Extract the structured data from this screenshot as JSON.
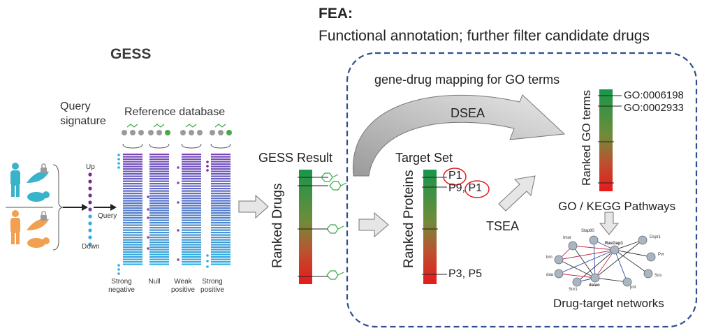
{
  "titles": {
    "fea_label": "FEA:",
    "fea_subtitle": "Functional annotation; further filter candidate drugs",
    "gess_label": "GESS"
  },
  "gess_panel": {
    "query_signature_line1": "Query",
    "query_signature_line2": "signature",
    "reference_database": "Reference database",
    "up": "Up",
    "down": "Down",
    "query": "Query",
    "columns": [
      {
        "line1": "Strong",
        "line2": "negative"
      },
      {
        "line1": "Null",
        "line2": ""
      },
      {
        "line1": "Weak",
        "line2": "positive"
      },
      {
        "line1": "Strong",
        "line2": "positive"
      }
    ]
  },
  "gess_result": {
    "title": "GESS Result",
    "axis_label": "Ranked Drugs"
  },
  "fea_panel": {
    "gene_drug_mapping": "gene-drug mapping for GO terms",
    "dsea": "DSEA",
    "tsea": "TSEA",
    "target_set": "Target Set",
    "ranked_proteins": "Ranked Proteins",
    "protein_labels": [
      "P1",
      "P9,",
      "P1",
      "P3, P5"
    ],
    "ranked_go_terms": "Ranked GO terms",
    "go_terms": [
      "GO:0006198",
      "GO:0002933"
    ],
    "go_kegg": "GO / KEGG Pathways",
    "drug_target_networks": "Drug-target networks",
    "network_nodes": [
      "Imor",
      "Slap80",
      "RasGap1",
      "Dspr1",
      "Pvr",
      "brn",
      "daa",
      "Sos",
      "Snr1",
      "dalao",
      "pnt"
    ]
  },
  "colors": {
    "gradient_top": "#1a9641",
    "gradient_mid": "#8a7a35",
    "gradient_bottom": "#e31a1c",
    "dashed_border": "#2f4f8f",
    "bar_purple": "#7b4fb8",
    "bar_blue": "#33aadd",
    "dot_purple": "#7a2a8a",
    "circle_red": "#e02020",
    "drug_icon_green": "#3aa84a"
  }
}
